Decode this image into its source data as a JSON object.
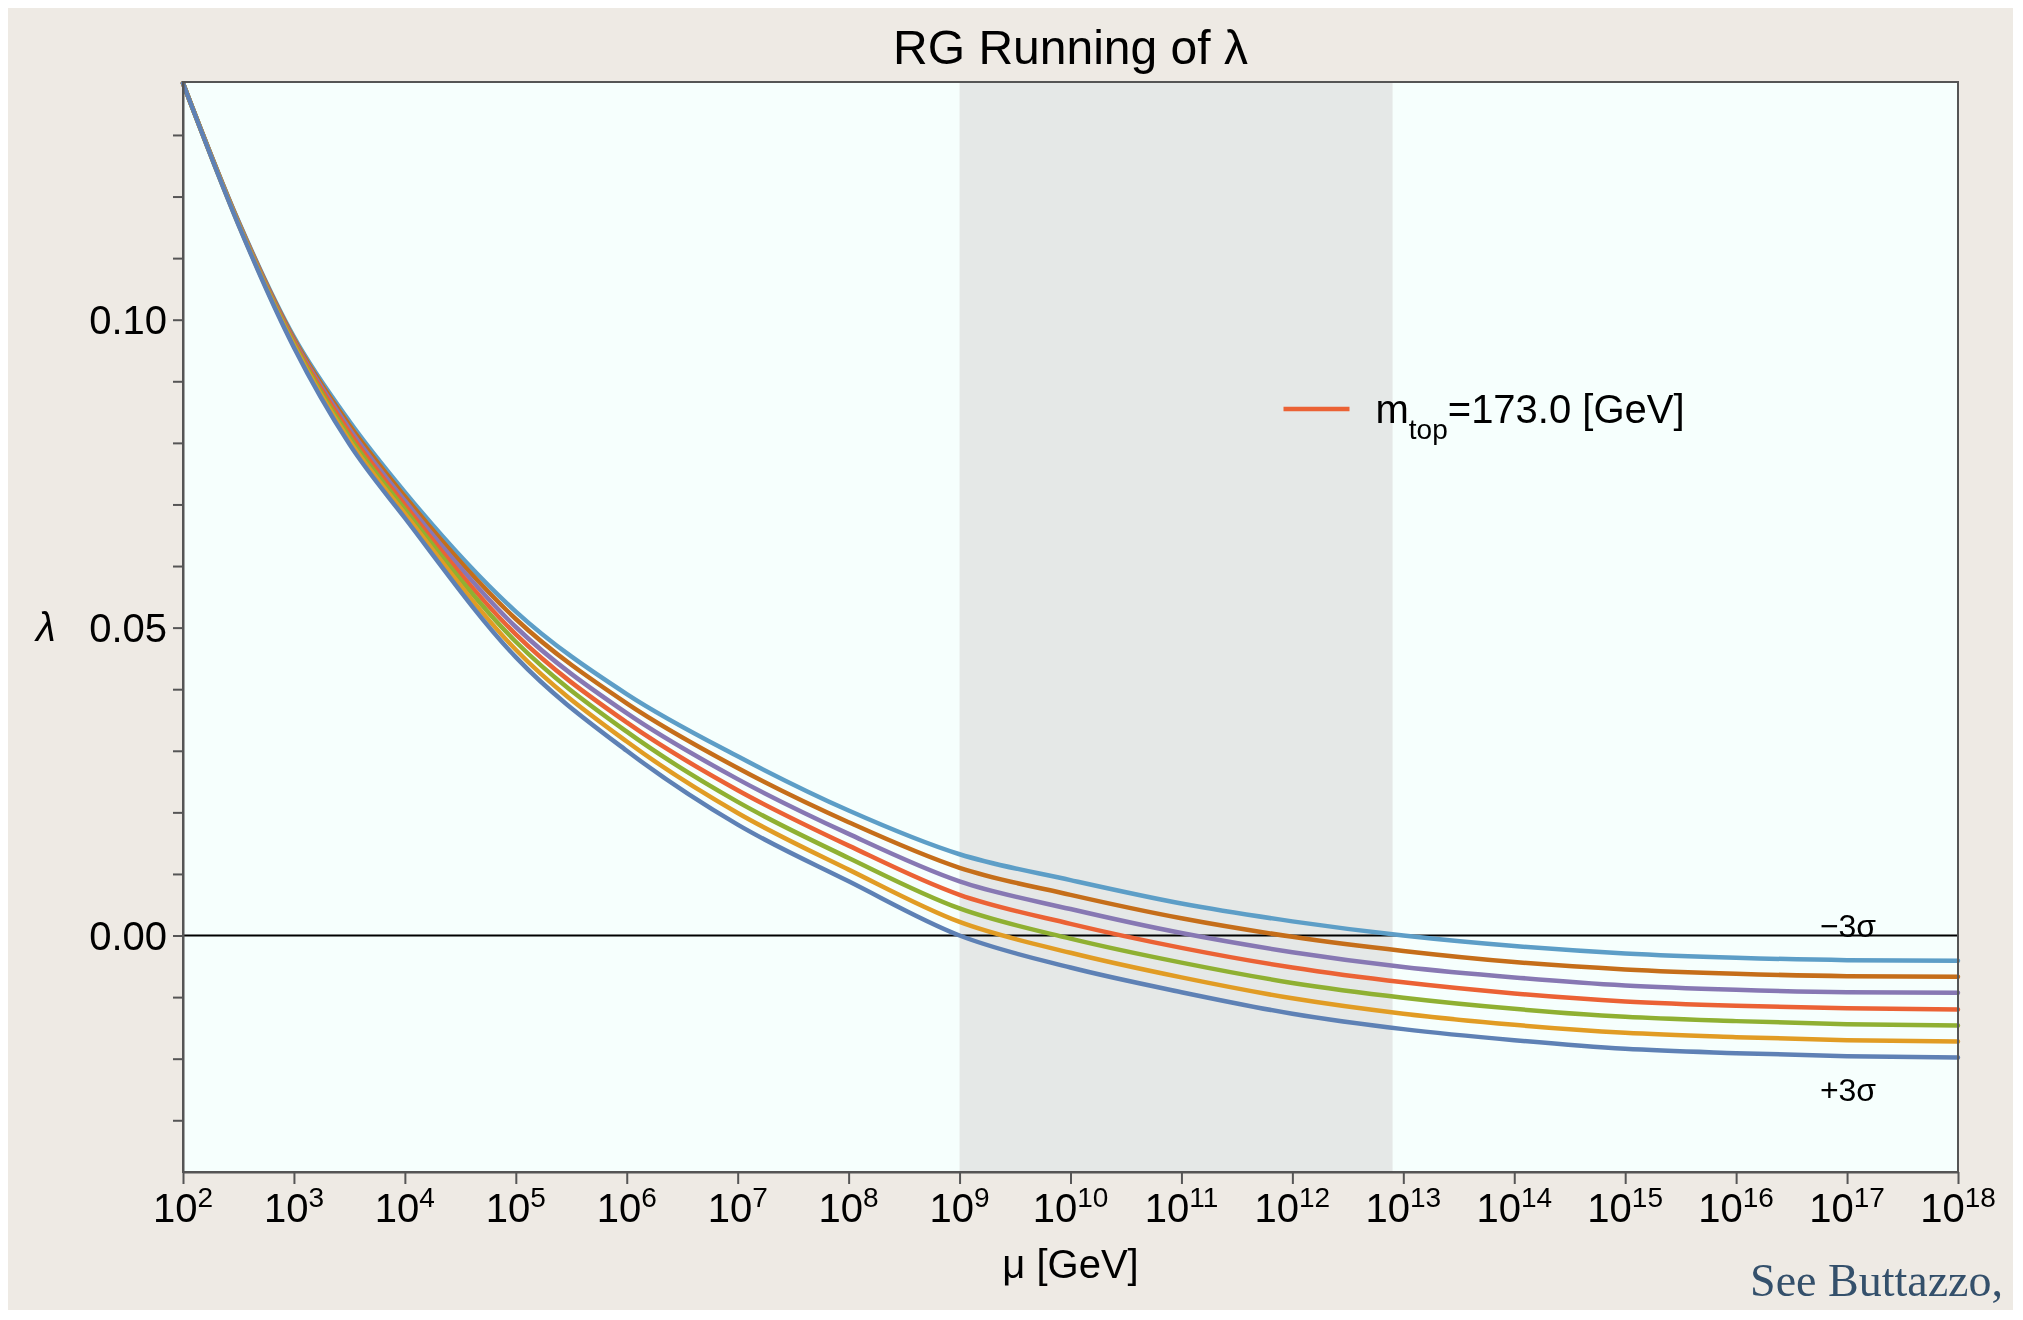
{
  "chart_data": {
    "type": "line",
    "title": "RG Running of λ",
    "xlabel": "μ [GeV]",
    "ylabel": "λ",
    "log": "x",
    "x": [
      100,
      316.2,
      1000,
      3162,
      10000.0,
      100000.0,
      1000000.0,
      10000000.0,
      100000000.0,
      1000000000.0,
      10000000000.0,
      100000000000.0,
      1000000000000.0,
      10000000000000.0,
      100000000000000.0,
      1000000000000000.0,
      1e+16,
      1e+17,
      1e+18
    ],
    "series": [
      {
        "color": "#5d9ec7",
        "values": [
          0.1384,
          0.116,
          0.0972,
          0.0835,
          0.072,
          0.0526,
          0.0392,
          0.0291,
          0.0203,
          0.0132,
          0.009,
          0.0052,
          0.0023,
          0.0,
          -0.0017,
          -0.0029,
          -0.0036,
          -0.004,
          -0.0041
        ]
      },
      {
        "color": "#c56e1a",
        "values": [
          0.1384,
          0.1159,
          0.0969,
          0.0829,
          0.0713,
          0.0514,
          0.0377,
          0.0272,
          0.0184,
          0.011,
          0.0066,
          0.0028,
          -0.0002,
          -0.0025,
          -0.0043,
          -0.0055,
          -0.0062,
          -0.0066,
          -0.0067
        ]
      },
      {
        "color": "#8778b3",
        "values": [
          0.1384,
          0.1158,
          0.0966,
          0.0823,
          0.0706,
          0.0501,
          0.0361,
          0.0254,
          0.0165,
          0.0088,
          0.0043,
          0.0004,
          -0.0027,
          -0.0051,
          -0.0068,
          -0.0081,
          -0.0088,
          -0.0092,
          -0.0093
        ]
      },
      {
        "name": "m$_{top}$=173.0 [GeV]",
        "color": "#eb6235",
        "values": [
          0.1384,
          0.1157,
          0.0964,
          0.0817,
          0.0699,
          0.0489,
          0.0346,
          0.0236,
          0.0146,
          0.0066,
          0.0019,
          -0.002,
          -0.0052,
          -0.0076,
          -0.0094,
          -0.0107,
          -0.0114,
          -0.0118,
          -0.012
        ]
      },
      {
        "color": "#8fb032",
        "values": [
          0.1384,
          0.1156,
          0.0961,
          0.081,
          0.0692,
          0.0477,
          0.0331,
          0.0217,
          0.0126,
          0.0044,
          -0.0005,
          -0.0044,
          -0.0077,
          -0.0101,
          -0.0119,
          -0.0132,
          -0.0139,
          -0.0144,
          -0.0146
        ]
      },
      {
        "color": "#e19c24",
        "values": [
          0.1384,
          0.1155,
          0.0958,
          0.0804,
          0.0685,
          0.0464,
          0.0315,
          0.0199,
          0.0107,
          0.0022,
          -0.0028,
          -0.0068,
          -0.0102,
          -0.0127,
          -0.0145,
          -0.0158,
          -0.0165,
          -0.017,
          -0.0172
        ]
      },
      {
        "color": "#5e81b5",
        "values": [
          0.1384,
          0.1154,
          0.0955,
          0.0798,
          0.0678,
          0.0452,
          0.03,
          0.018,
          0.0088,
          0.0,
          -0.0052,
          -0.0092,
          -0.0127,
          -0.0152,
          -0.017,
          -0.0184,
          -0.0191,
          -0.0196,
          -0.0198
        ]
      }
    ],
    "xlim": [
      100,
      1e+18
    ],
    "xticks": [
      {
        "value": 100.0,
        "label": "10$^{2}$"
      },
      {
        "value": 1000.0,
        "label": "10$^{3}$"
      },
      {
        "value": 10000.0,
        "label": "10$^{4}$"
      },
      {
        "value": 100000.0,
        "label": "10$^{5}$"
      },
      {
        "value": 1000000.0,
        "label": "10$^{6}$"
      },
      {
        "value": 10000000.0,
        "label": "10$^{7}$"
      },
      {
        "value": 100000000.0,
        "label": "10$^{8}$"
      },
      {
        "value": 1000000000.0,
        "label": "10$^{9}$"
      },
      {
        "value": 10000000000.0,
        "label": "10$^{10}$"
      },
      {
        "value": 100000000000.0,
        "label": "10$^{11}$"
      },
      {
        "value": 1000000000000.0,
        "label": "10$^{12}$"
      },
      {
        "value": 10000000000000.0,
        "label": "10$^{13}$"
      },
      {
        "value": 100000000000000.0,
        "label": "10$^{14}$"
      },
      {
        "value": 1000000000000000.0,
        "label": "10$^{15}$"
      },
      {
        "value": 1e+16,
        "label": "10$^{16}$"
      },
      {
        "value": 1e+17,
        "label": "10$^{17}$"
      },
      {
        "value": 1e+18,
        "label": "10$^{18}$"
      }
    ],
    "ylim": [
      -0.0384,
      0.1386
    ],
    "yticks": [
      {
        "value": -0.03,
        "label": null
      },
      {
        "value": -0.02,
        "label": null
      },
      {
        "value": -0.01,
        "label": null
      },
      {
        "value": 0,
        "label": "0.00"
      },
      {
        "value": 0.01,
        "label": null
      },
      {
        "value": 0.02,
        "label": null
      },
      {
        "value": 0.03,
        "label": null
      },
      {
        "value": 0.04,
        "label": null
      },
      {
        "value": 0.05,
        "label": "0.05"
      },
      {
        "value": 0.06,
        "label": null
      },
      {
        "value": 0.07,
        "label": null
      },
      {
        "value": 0.08,
        "label": null
      },
      {
        "value": 0.09,
        "label": null
      },
      {
        "value": 0.1,
        "label": "0.10"
      },
      {
        "value": 0.11,
        "label": null
      },
      {
        "value": 0.12,
        "label": null
      },
      {
        "value": 0.13,
        "label": null
      }
    ],
    "ref_lines": [
      {
        "axis": "y",
        "value": 0,
        "color": "#000000"
      }
    ],
    "bands": [
      {
        "axis": "x",
        "from": 1000000000.0,
        "to": 8000000000000.0,
        "color": "#e5e8e7"
      }
    ],
    "annotations": [
      "−3σ",
      "+3σ",
      "See Buttazzo,"
    ],
    "legend": "right",
    "grid": false,
    "marker": "none",
    "line_style": "solid"
  }
}
